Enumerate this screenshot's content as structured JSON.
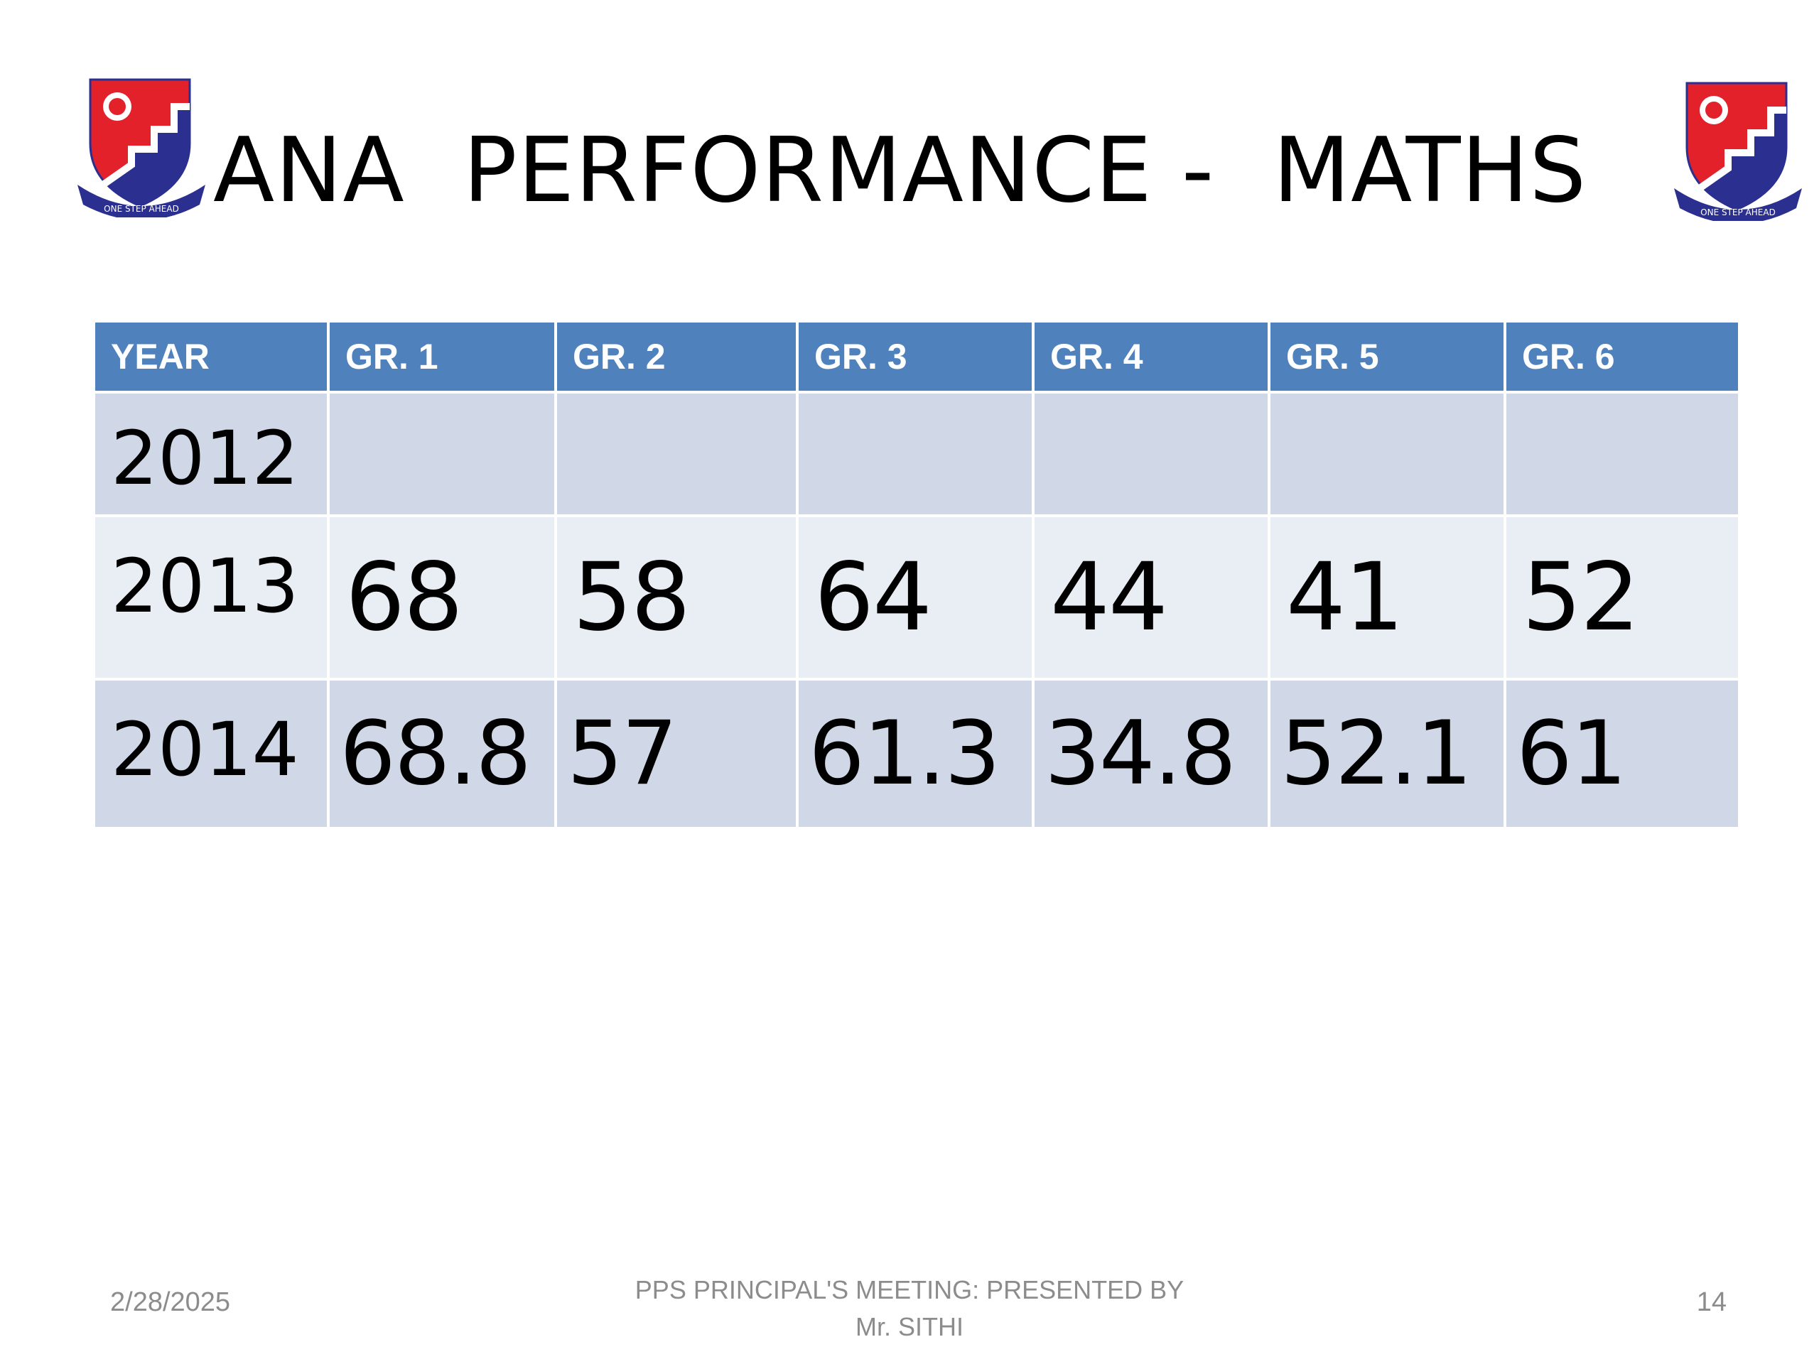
{
  "slide": {
    "title": "ANA  PERFORMANCE -  MATHS",
    "crest_motto": "ONE STEP AHEAD",
    "colors": {
      "header_bg": "#4f81bd",
      "row_band_dark": "#d0d8e8",
      "row_band_light": "#e9edf4",
      "crest_red": "#e2212b",
      "crest_blue": "#2b2f8f"
    }
  },
  "table": {
    "headers": [
      "YEAR",
      "GR.  1",
      "GR.  2",
      "GR.  3",
      "GR.  4",
      "GR.  5",
      "GR.  6"
    ],
    "rows": [
      {
        "year": "2012",
        "values": [
          "",
          "",
          "",
          "",
          "",
          ""
        ]
      },
      {
        "year": "2013",
        "values": [
          "68",
          "58",
          "64",
          "44",
          "41",
          "52"
        ]
      },
      {
        "year": "2014",
        "values": [
          "68.8",
          "57",
          "61.3",
          "34.8",
          "52.1",
          "61"
        ]
      }
    ]
  },
  "footer": {
    "date": "2/28/2025",
    "line1": "PPS  PRINCIPAL'S MEETING: PRESENTED  BY",
    "line2": "Mr. SITHI",
    "page_number": "14"
  }
}
